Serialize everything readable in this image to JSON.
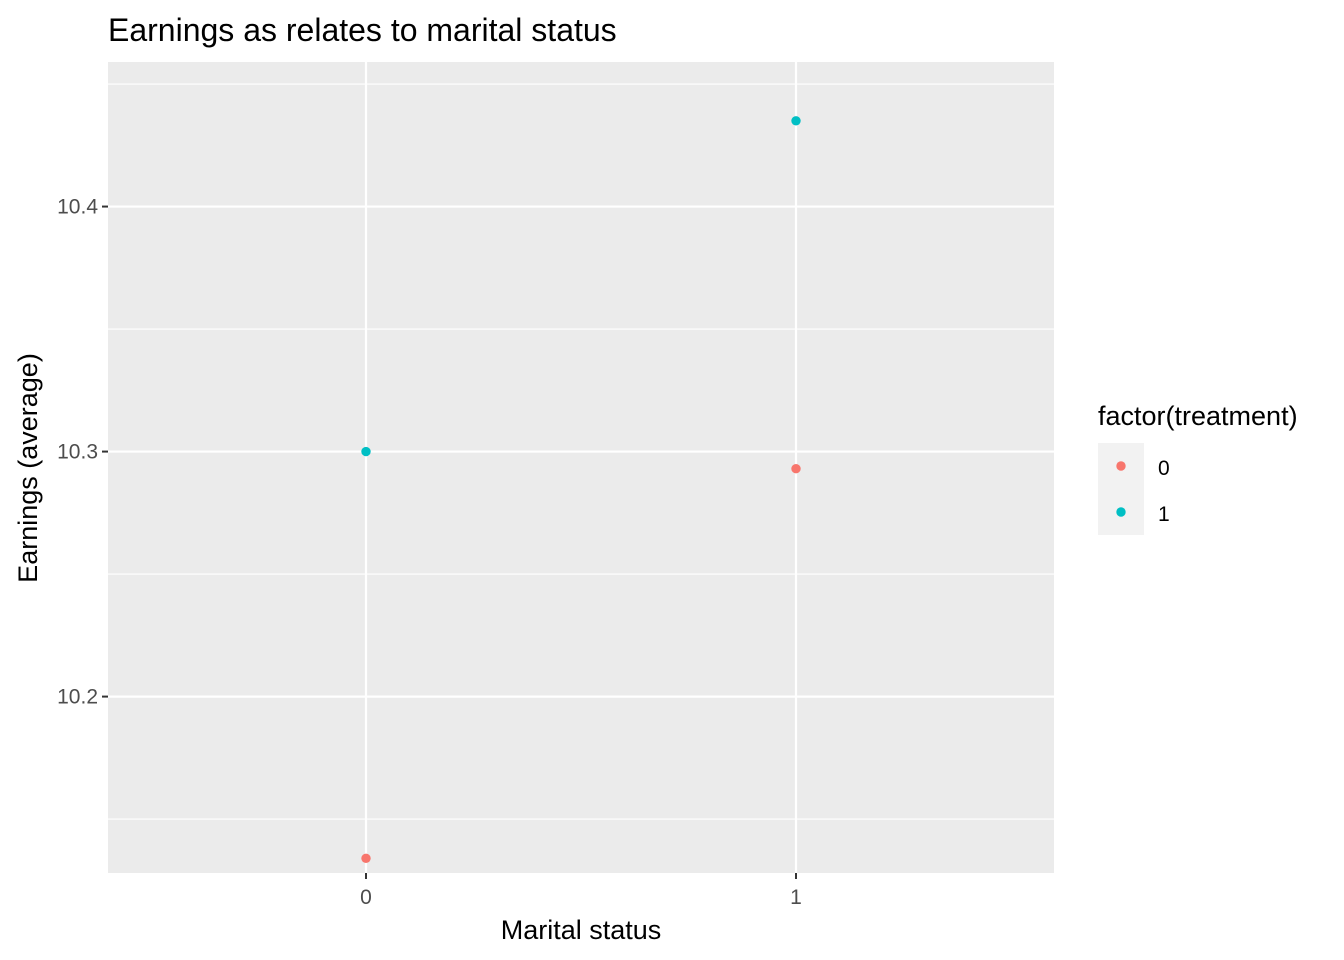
{
  "chart_data": {
    "type": "scatter",
    "title": "Earnings as relates to marital status",
    "xlabel": "Marital status",
    "ylabel": "Earnings (average)",
    "x_categories": [
      "0",
      "1"
    ],
    "xlim": [
      -0.6,
      1.6
    ],
    "ylim": [
      10.128,
      10.459
    ],
    "y_ticks": [
      10.2,
      10.3,
      10.4
    ],
    "y_minor_ticks": [
      10.15,
      10.25,
      10.35,
      10.45
    ],
    "y_tick_labels": [
      "10.2",
      "10.3",
      "10.4"
    ],
    "grid": true,
    "legend": {
      "title": "factor(treatment)",
      "position": "right",
      "entries": [
        {
          "label": "0",
          "color": "#F8766D"
        },
        {
          "label": "1",
          "color": "#00BFC4"
        }
      ]
    },
    "series": [
      {
        "name": "0",
        "color": "#F8766D",
        "points": [
          {
            "x": 0,
            "y": 10.134
          },
          {
            "x": 1,
            "y": 10.293
          }
        ]
      },
      {
        "name": "1",
        "color": "#00BFC4",
        "points": [
          {
            "x": 0,
            "y": 10.3
          },
          {
            "x": 1,
            "y": 10.435
          }
        ]
      }
    ]
  }
}
